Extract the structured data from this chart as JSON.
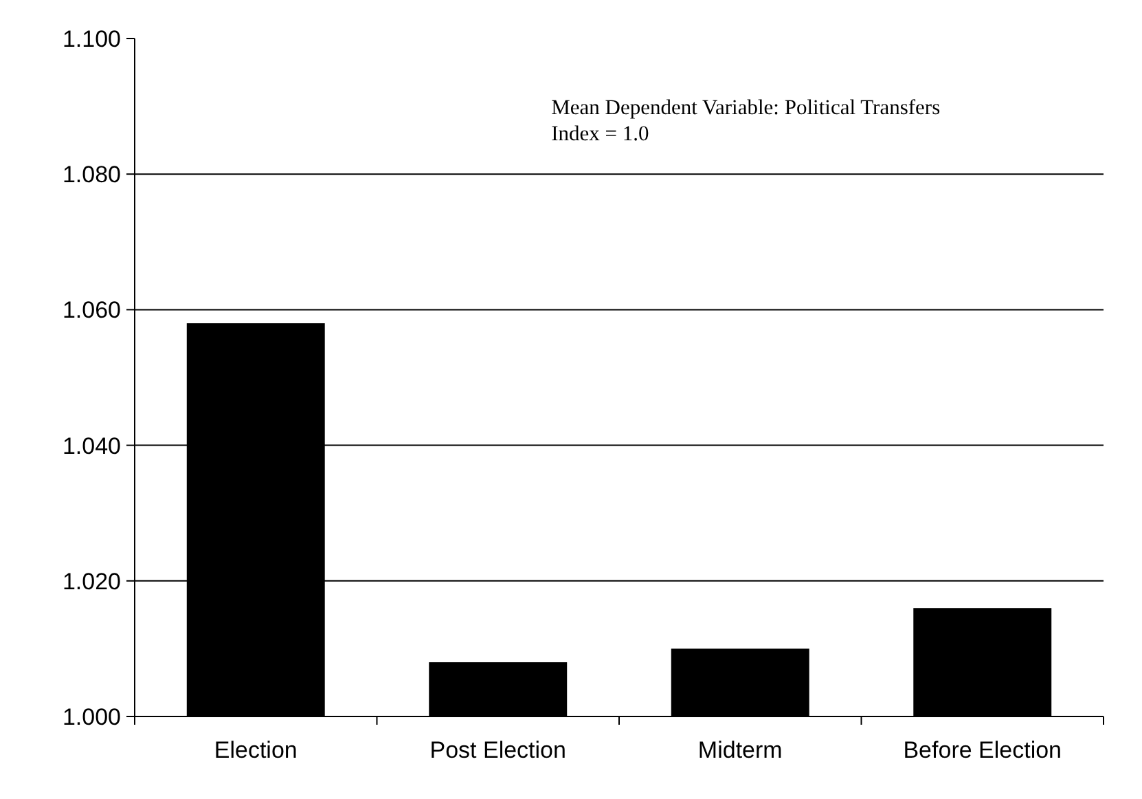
{
  "chart_data": {
    "type": "bar",
    "categories": [
      "Election",
      "Post Election",
      "Midterm",
      "Before Election"
    ],
    "values": [
      1.058,
      1.008,
      1.01,
      1.016
    ],
    "color": "#000000",
    "ylim": [
      1.0,
      1.1
    ],
    "yticks": [
      {
        "value": 1.0,
        "label": "1.000"
      },
      {
        "value": 1.02,
        "label": "1.020"
      },
      {
        "value": 1.04,
        "label": "1.040"
      },
      {
        "value": 1.06,
        "label": "1.060"
      },
      {
        "value": 1.08,
        "label": "1.080"
      },
      {
        "value": 1.1,
        "label": "1.100"
      }
    ],
    "grid": "y",
    "annotations": [
      "Mean Dependent Variable: Political Transfers\nIndex = 1.0"
    ]
  }
}
